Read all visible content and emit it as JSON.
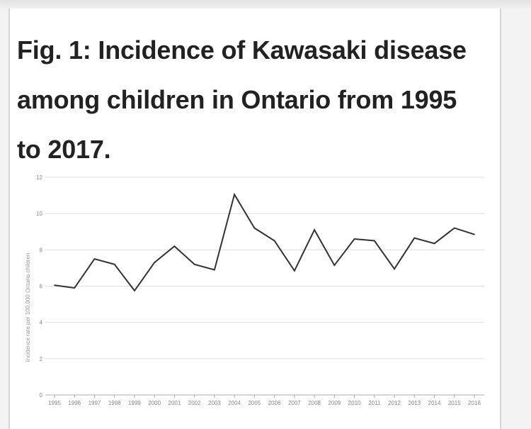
{
  "figure": {
    "title": "Fig. 1: Incidence of Kawasaki disease among children in Ontario from 1995 to 2017."
  },
  "chart_data": {
    "type": "line",
    "title": "",
    "xlabel": "",
    "ylabel": "Incidence rate per 100,000 Ontario children",
    "ylim": [
      0,
      12
    ],
    "yticks": [
      "0",
      "2",
      "4",
      "6",
      "8",
      "10",
      "12"
    ],
    "grid": true,
    "categories": [
      "1995",
      "1996",
      "1997",
      "1998",
      "1999",
      "2000",
      "2001",
      "2002",
      "2003",
      "2004",
      "2005",
      "2006",
      "2007",
      "2008",
      "2009",
      "2010",
      "2011",
      "2012",
      "2013",
      "2014",
      "2015",
      "2016"
    ],
    "series": [
      {
        "values": [
          6.05,
          5.9,
          7.5,
          7.2,
          5.75,
          7.3,
          8.2,
          7.2,
          6.9,
          11.05,
          9.2,
          8.5,
          6.85,
          9.1,
          7.15,
          8.6,
          8.5,
          6.95,
          8.65,
          8.35,
          9.2,
          8.85
        ],
        "color": "#333333"
      }
    ]
  }
}
